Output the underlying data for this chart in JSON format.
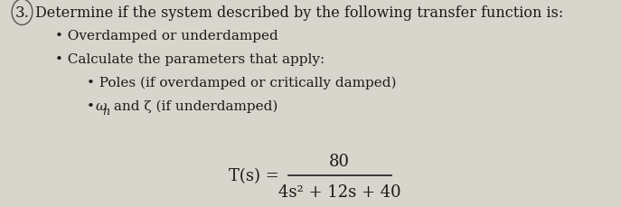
{
  "background_color": "#d8d5cc",
  "text_color": "#1a1a1a",
  "question_number": "3.",
  "title_text": "Determine if the system described by the following transfer function is:",
  "bullet1": "Overdamped or underdamped",
  "bullet2": "Calculate the parameters that apply:",
  "sub_bullet1": "Poles (if overdamped or critically damped)",
  "sub_bullet2_plain": " and ζ (if underdamped)",
  "sub_bullet2_omega": "ω",
  "sub_bullet2_n": "n",
  "transfer_label": "T(s) =",
  "numerator": "80",
  "denominator": "4s² + 12s + 40",
  "font_size_title": 11.5,
  "font_size_body": 11,
  "font_size_math": 12
}
